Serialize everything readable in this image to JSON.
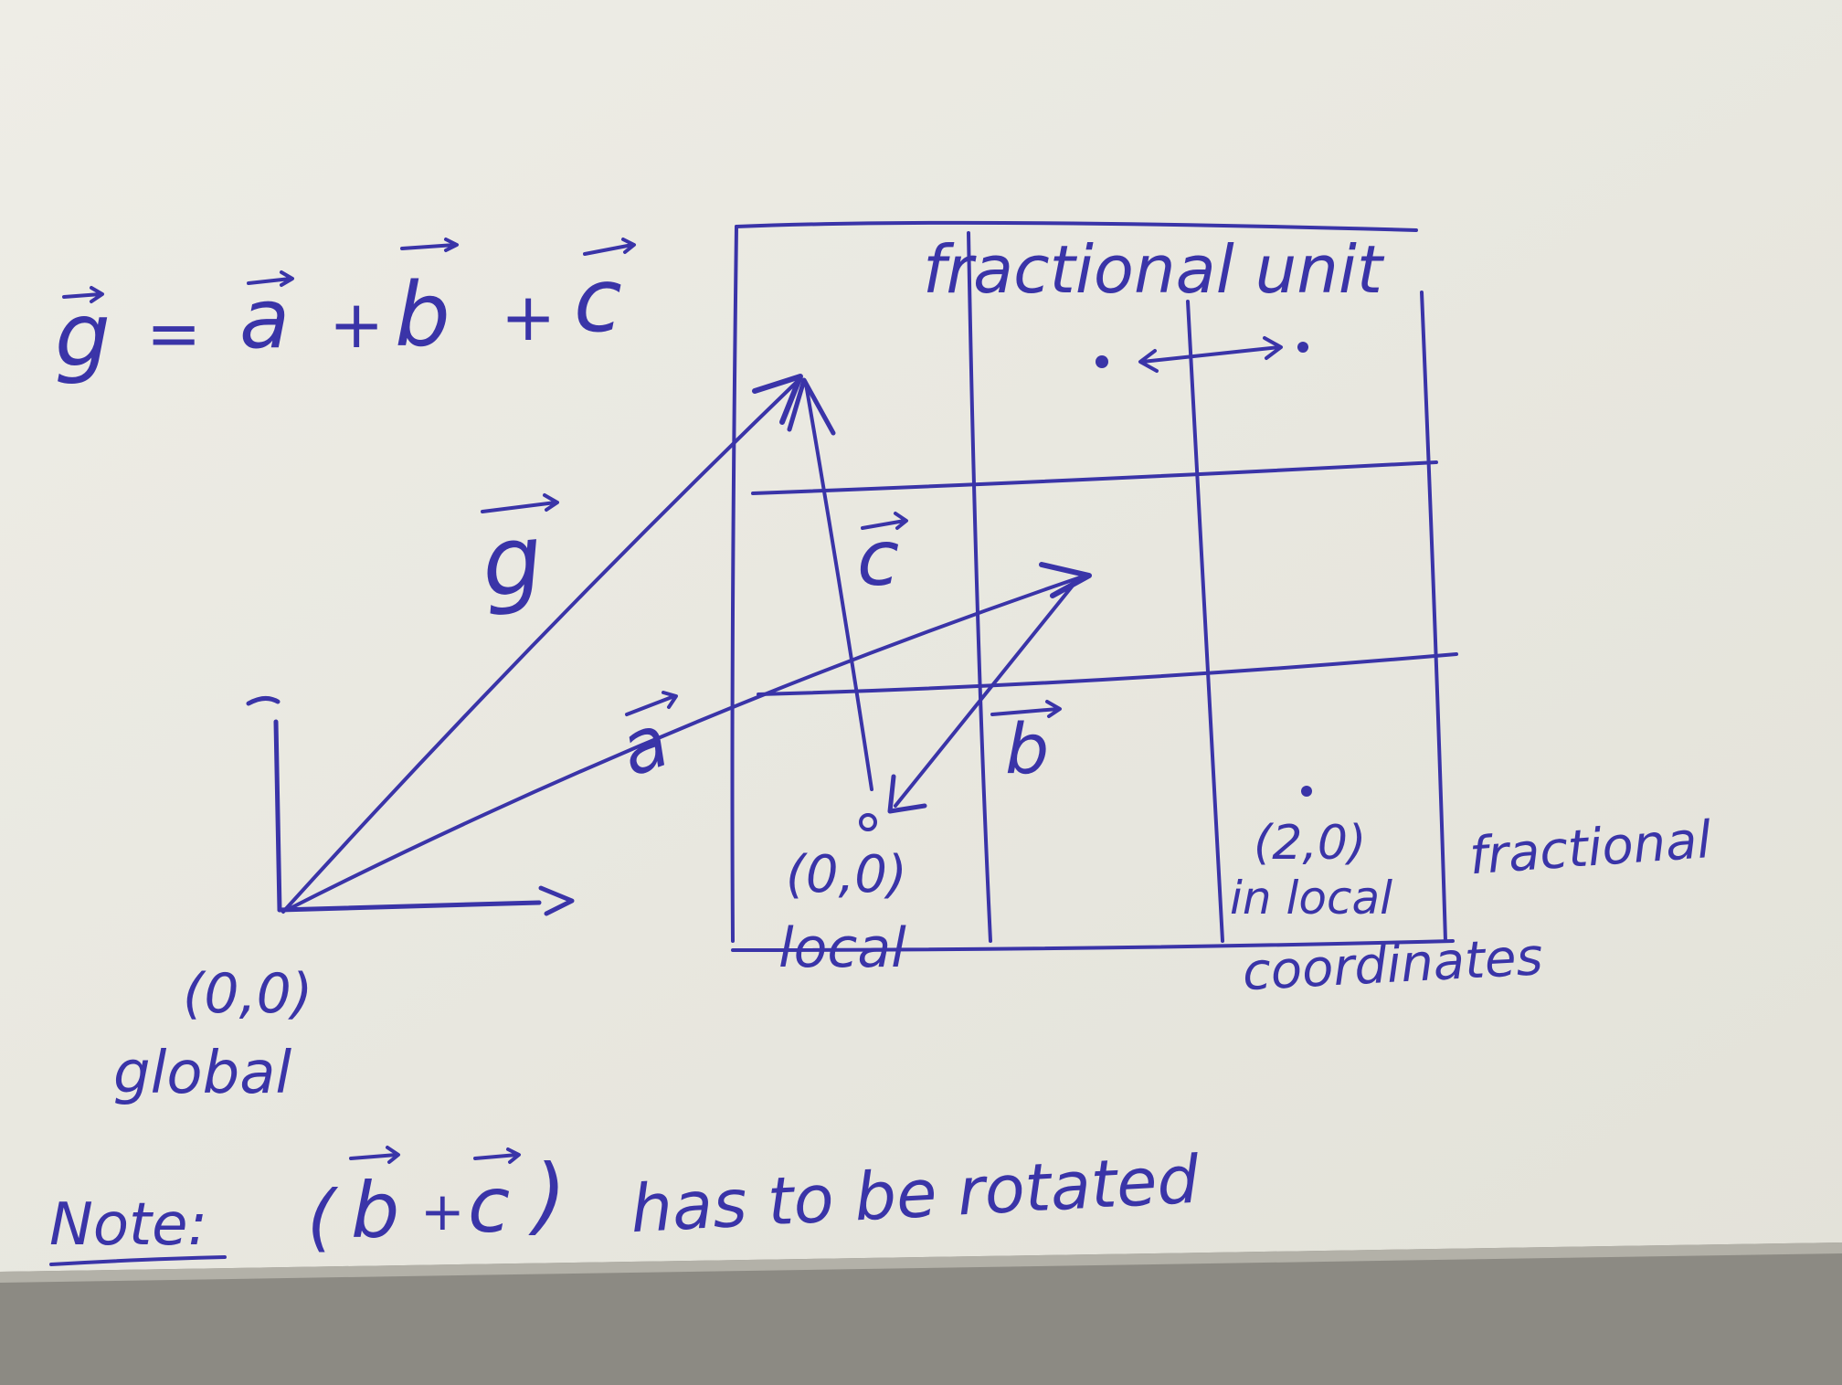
{
  "colors": {
    "ink": "#3a34a8",
    "paper": "#ecebe3",
    "paper_shadow": "#d9d8cf",
    "table": "#8c8a83"
  },
  "equation": {
    "lhs": "g",
    "equals": "=",
    "term_a": "a",
    "plus1": "+",
    "term_b": "b",
    "plus2": "+",
    "term_c": "c"
  },
  "grid": {
    "title": "fractional unit",
    "columns": 3,
    "rows": 3
  },
  "vectors": {
    "g": "g",
    "a": "a",
    "b": "b",
    "c": "c"
  },
  "labels": {
    "global_origin": "(0,0)",
    "global_word": "global",
    "local_origin": "(0,0)",
    "local_word": "local",
    "point_2_0": "(2,0)",
    "in_local": "in local",
    "fractional": "fractional",
    "coordinates": "coordinates"
  },
  "note": {
    "prefix": "Note:",
    "open_paren": "(",
    "b": "b",
    "plus": "+",
    "c": "c",
    "close_paren": ")",
    "text": "has to be rotated"
  },
  "icons": {
    "vector_arrow": "over-arrow-icon",
    "double_arrow": "double-headed-arrow-icon",
    "axis_tick": "axis-arrow-icon"
  }
}
